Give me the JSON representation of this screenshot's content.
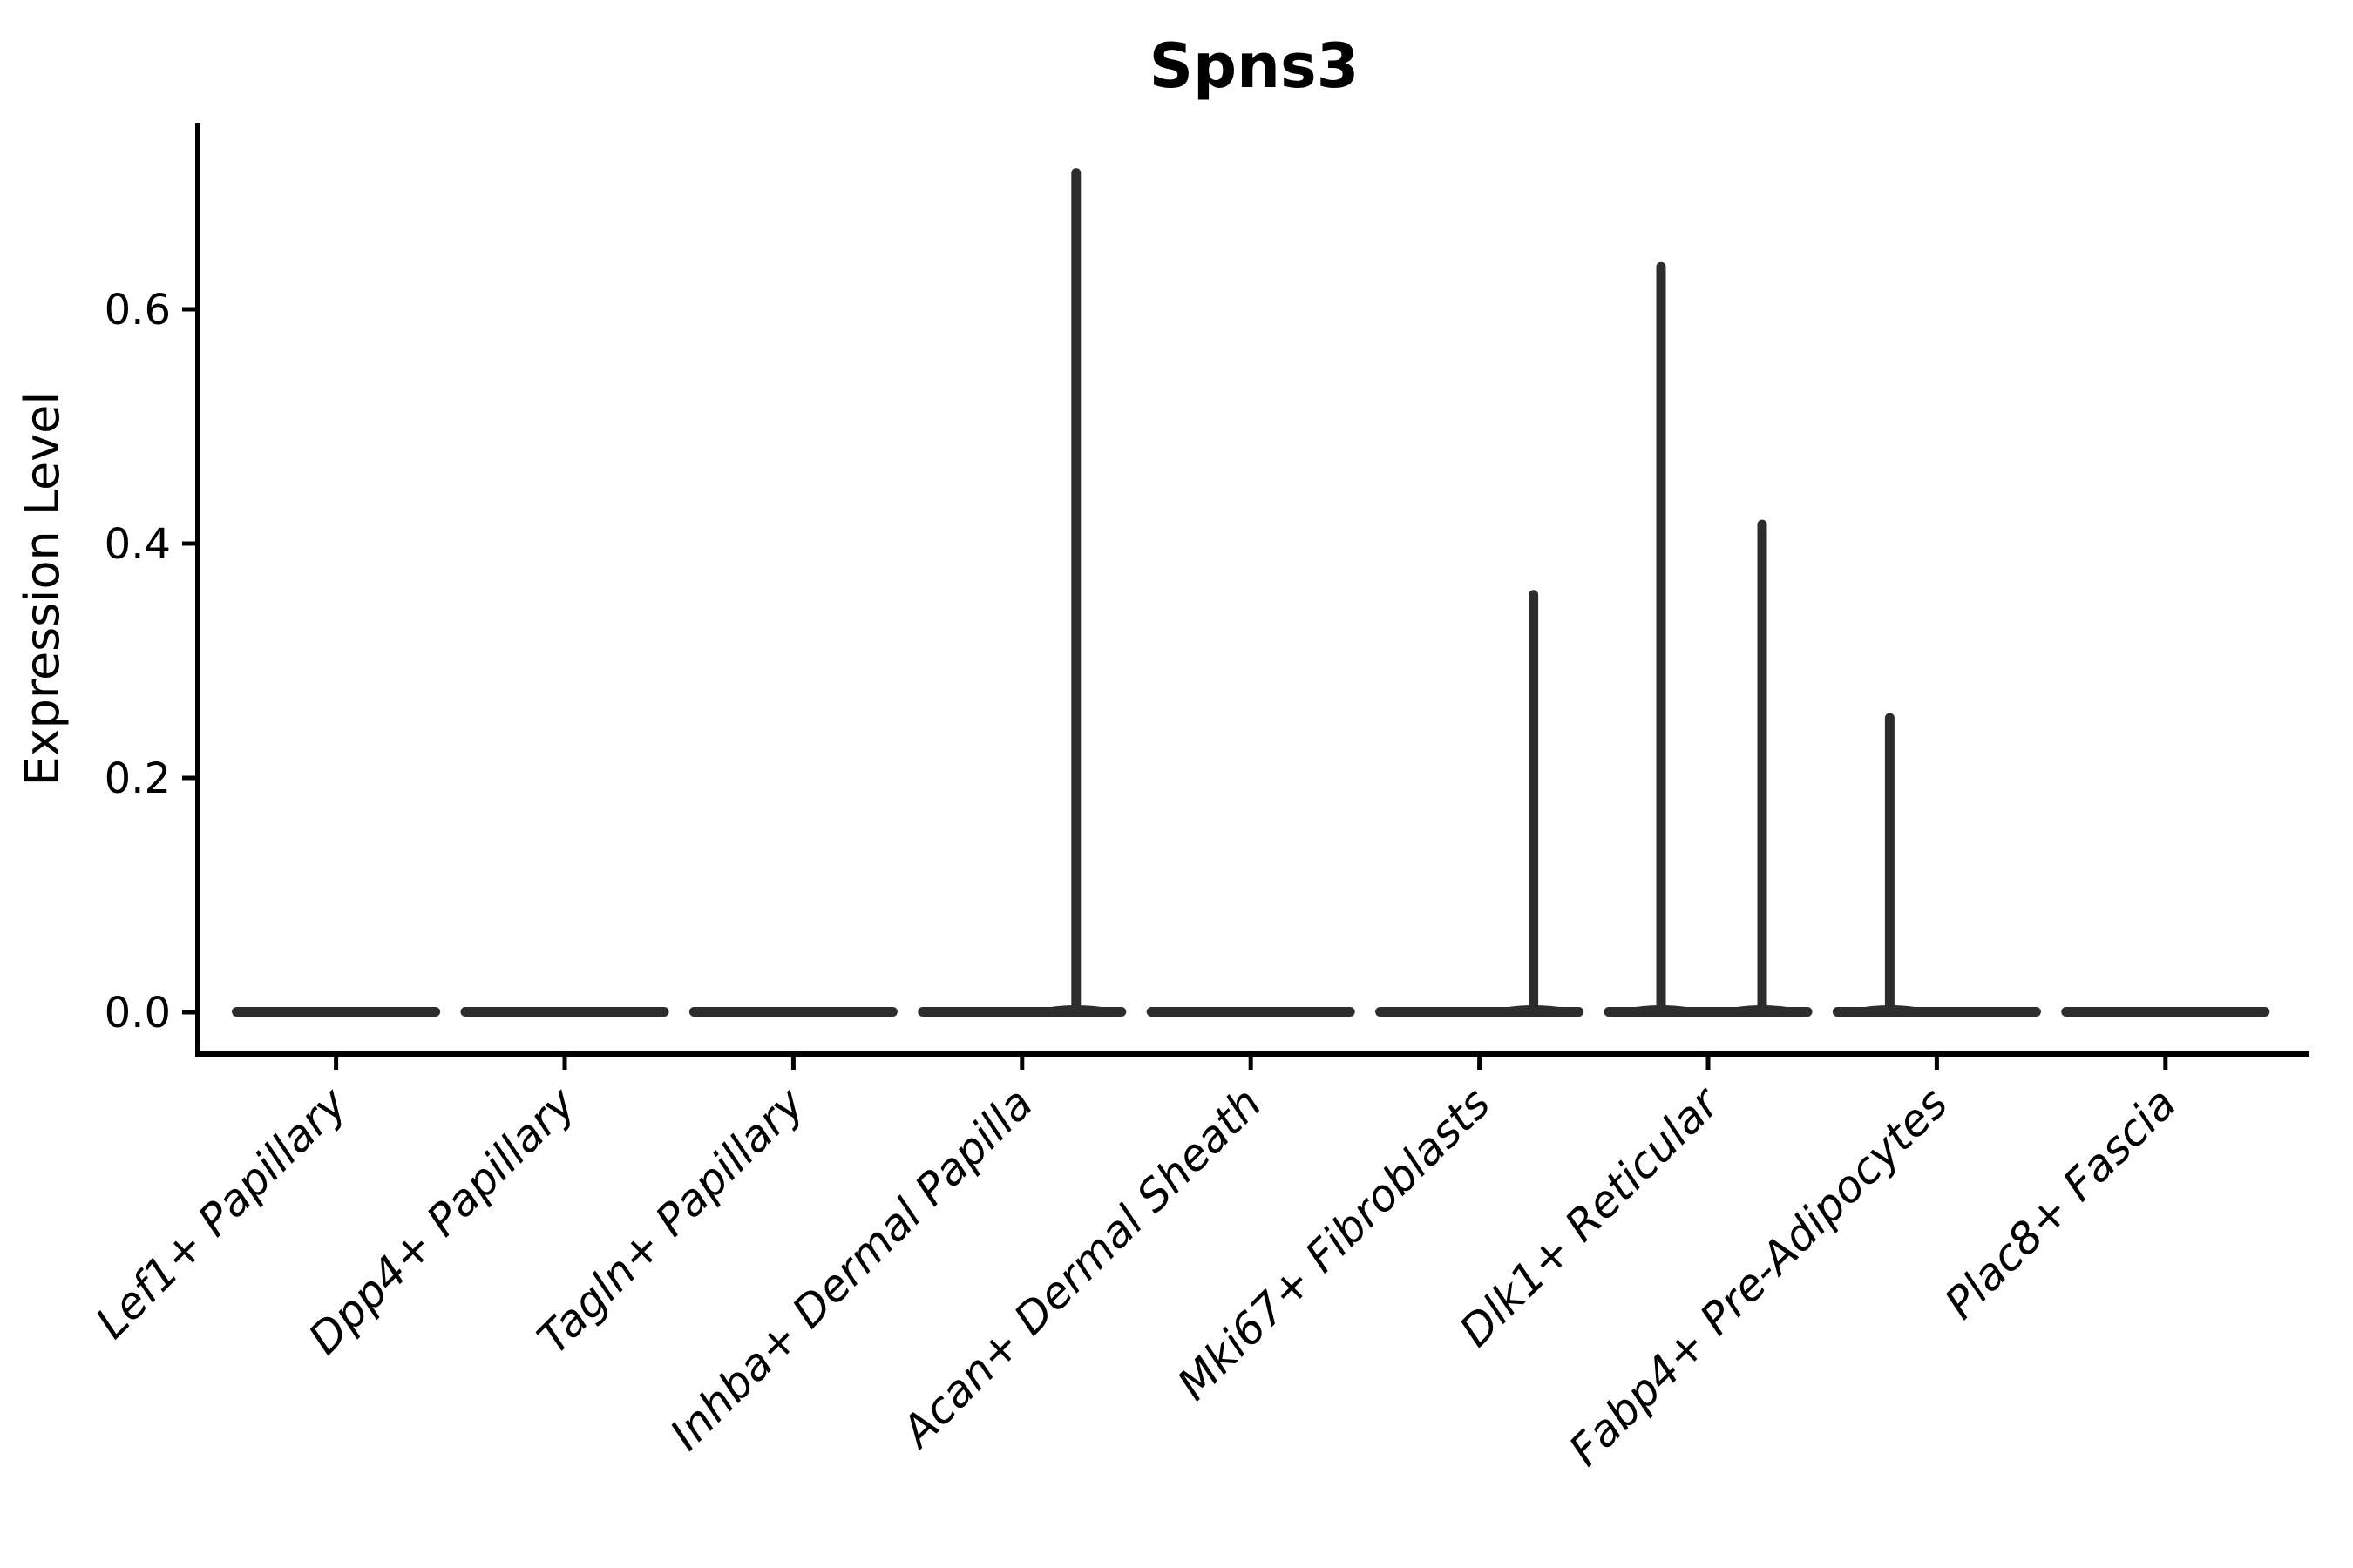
{
  "page": {
    "background": "#ffffff"
  },
  "chart_data": {
    "type": "violin",
    "title": "Spns3",
    "xlabel": "",
    "ylabel": "Expression Level",
    "y_ticks": [
      {
        "label": "0.0",
        "value": 0.0
      },
      {
        "label": "0.2",
        "value": 0.2
      },
      {
        "label": "0.4",
        "value": 0.4
      },
      {
        "label": "0.6",
        "value": 0.6
      }
    ],
    "ylim": [
      -0.034,
      0.76
    ],
    "grid": false,
    "legend": "none",
    "x_tick_rotation_deg": 45,
    "categories": [
      "Lef1+ Papillary",
      "Dpp4+ Papillary",
      "Tagln+ Papillary",
      "Inhba+ Dermal Papilla",
      "Acan+ Dermal Sheath",
      "Mki67+ Fibroblasts",
      "Dlk1+ Reticular",
      "Fabp4+ Pre-Adipocytes",
      "Plac8+ Fascia"
    ],
    "violins": [
      {
        "category": "Lef1+ Papillary",
        "body_value": 0.0,
        "spikes": []
      },
      {
        "category": "Dpp4+ Papillary",
        "body_value": 0.0,
        "spikes": []
      },
      {
        "category": "Tagln+ Papillary",
        "body_value": 0.0,
        "spikes": []
      },
      {
        "category": "Inhba+ Dermal Papilla",
        "body_value": 0.0,
        "spikes": [
          {
            "side": "right",
            "value": 0.72
          }
        ]
      },
      {
        "category": "Acan+ Dermal Sheath",
        "body_value": 0.0,
        "spikes": []
      },
      {
        "category": "Mki67+ Fibroblasts",
        "body_value": 0.0,
        "spikes": [
          {
            "side": "right",
            "value": 0.36
          }
        ]
      },
      {
        "category": "Dlk1+ Reticular",
        "body_value": 0.0,
        "spikes": [
          {
            "side": "left",
            "value": 0.64
          },
          {
            "side": "right",
            "value": 0.42
          }
        ]
      },
      {
        "category": "Fabp4+ Pre-Adipocytes",
        "body_value": 0.0,
        "spikes": [
          {
            "side": "left",
            "value": 0.255
          }
        ]
      },
      {
        "category": "Plac8+ Fascia",
        "body_value": 0.0,
        "spikes": []
      }
    ],
    "colors": {
      "violin": "#2d2d2d",
      "axis": "#000000",
      "text": "#000000",
      "background": "#ffffff"
    }
  }
}
